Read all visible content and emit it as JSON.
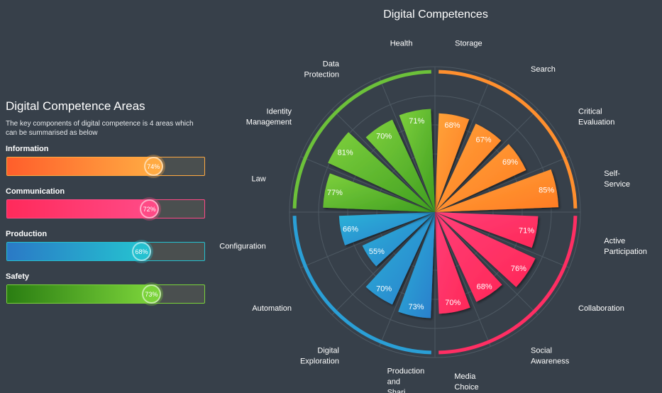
{
  "left_panel": {
    "title": "Digital Competence Areas",
    "description": "The key components of digital competence is 4 areas which can be summarised as below",
    "areas": [
      {
        "label": "Information",
        "value": 74,
        "value_label": "74%",
        "color_from": "#ff5e2b",
        "color_to": "#ffaa42"
      },
      {
        "label": "Communication",
        "value": 72,
        "value_label": "72%",
        "color_from": "#ff2a5b",
        "color_to": "#ff4a86"
      },
      {
        "label": "Production",
        "value": 68,
        "value_label": "68%",
        "color_from": "#2a79c6",
        "color_to": "#25c1d0"
      },
      {
        "label": "Safety",
        "value": 73,
        "value_label": "73%",
        "color_from": "#2a7d12",
        "color_to": "#7bd33a"
      }
    ]
  },
  "chart_data": {
    "type": "polar-bar",
    "title": "Digital Competences",
    "rmax": 100,
    "grid": true,
    "categories": [
      "Storage",
      "Search",
      "Critical Evaluation",
      "Self-Service",
      "Active Participation",
      "Collaboration",
      "Social Awareness",
      "Media Choice",
      "Production and Shari...",
      "Digital Exploration",
      "Automation",
      "Configuration",
      "Law",
      "Identity Management",
      "Data Protection",
      "Health"
    ],
    "values": [
      68,
      67,
      69,
      85,
      71,
      76,
      68,
      70,
      73,
      70,
      55,
      66,
      77,
      81,
      70,
      71
    ],
    "value_labels": [
      "68%",
      "67%",
      "69%",
      "85%",
      "71%",
      "76%",
      "68%",
      "70%",
      "73%",
      "70%",
      "55%",
      "66%",
      "77%",
      "81%",
      "70%",
      "71%"
    ],
    "groups": [
      {
        "name": "Information",
        "color": "#ff8f2e",
        "bar_from": "#ffa43a",
        "bar_to": "#ff7a22",
        "members": [
          "Storage",
          "Search",
          "Critical Evaluation",
          "Self-Service"
        ]
      },
      {
        "name": "Communication",
        "color": "#ff2e63",
        "bar_from": "#ff3f78",
        "bar_to": "#ff2858",
        "members": [
          "Active Participation",
          "Collaboration",
          "Social Awareness",
          "Media Choice"
        ]
      },
      {
        "name": "Production",
        "color": "#2a9fd6",
        "bar_from": "#2ab3d8",
        "bar_to": "#2a7dcc",
        "members": [
          "Production and Shari...",
          "Digital Exploration",
          "Automation",
          "Configuration"
        ]
      },
      {
        "name": "Safety",
        "color": "#6cc13a",
        "bar_from": "#7ed03d",
        "bar_to": "#3f9e20",
        "members": [
          "Law",
          "Identity Management",
          "Data Protection",
          "Health"
        ]
      }
    ],
    "label_lines": [
      [
        "Storage"
      ],
      [
        "Search"
      ],
      [
        "Critical",
        "Evaluation"
      ],
      [
        "Self-",
        "Service"
      ],
      [
        "Active",
        "Participation"
      ],
      [
        "Collaboration"
      ],
      [
        "Social",
        "Awareness"
      ],
      [
        "Media",
        "Choice"
      ],
      [
        "Production",
        "and",
        "Shari..."
      ],
      [
        "Digital",
        "Exploration"
      ],
      [
        "Automation"
      ],
      [
        "Configuration"
      ],
      [
        "Law"
      ],
      [
        "Identity",
        "Management"
      ],
      [
        "Data",
        "Protection"
      ],
      [
        "Health"
      ]
    ]
  }
}
